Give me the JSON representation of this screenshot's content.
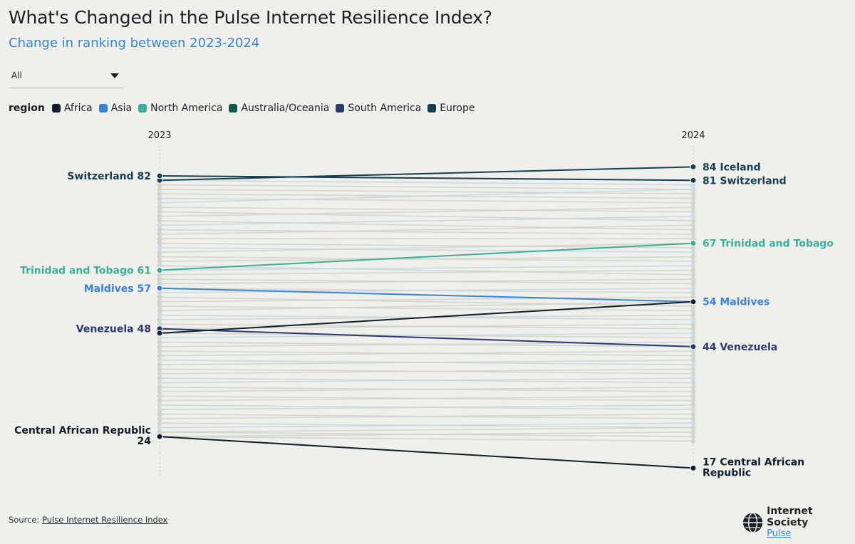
{
  "header": {
    "title": "What's Changed in the Pulse Internet Resilience Index?",
    "subtitle": "Change in ranking between 2023-2024"
  },
  "filter": {
    "selected": "All"
  },
  "legend": {
    "title": "region",
    "items": [
      {
        "label": "Africa",
        "color": "#0f1f2e"
      },
      {
        "label": "Asia",
        "color": "#3b82d6"
      },
      {
        "label": "North America",
        "color": "#3aae9a"
      },
      {
        "label": "Australia/Oceania",
        "color": "#0b5a4a"
      },
      {
        "label": "South America",
        "color": "#2a3a6e"
      },
      {
        "label": "Europe",
        "color": "#173e4e"
      }
    ]
  },
  "chart_data": {
    "type": "slope",
    "x": [
      "2023",
      "2024"
    ],
    "ylim": [
      15,
      85
    ],
    "highlighted": [
      {
        "country": "Iceland",
        "region": "Europe",
        "v2023": 81,
        "v2024": 84,
        "label2023": "",
        "label2024": "84 Iceland"
      },
      {
        "country": "Switzerland",
        "region": "Europe",
        "v2023": 82,
        "v2024": 81,
        "label2023": "Switzerland 82",
        "label2024": "81 Switzerland"
      },
      {
        "country": "Trinidad and Tobago",
        "region": "North America",
        "v2023": 61,
        "v2024": 67,
        "label2023": "Trinidad and Tobago 61",
        "label2024": "67 Trinidad and Tobago"
      },
      {
        "country": "Maldives",
        "region": "Asia",
        "v2023": 57,
        "v2024": 54,
        "label2023": "Maldives 57",
        "label2024": "54 Maldives"
      },
      {
        "country": "Venezuela",
        "region": "South America",
        "v2023": 48,
        "v2024": 44,
        "label2023": "Venezuela 48",
        "label2024": "44 Venezuela"
      },
      {
        "country": "Unlabeled Africa",
        "region": "Africa",
        "v2023": 47,
        "v2024": 54,
        "label2023": "",
        "label2024": ""
      },
      {
        "country": "Central African Republic",
        "region": "Africa",
        "v2023": 24,
        "v2024": 17,
        "label2023": "Central African Republic 24",
        "label2024": "17 Central African Republic"
      }
    ],
    "background_lines": [
      [
        81,
        80
      ],
      [
        80,
        79
      ],
      [
        79,
        78
      ],
      [
        78,
        77
      ],
      [
        77,
        76
      ],
      [
        76,
        79
      ],
      [
        75,
        74
      ],
      [
        74,
        72
      ],
      [
        73,
        75
      ],
      [
        72,
        70
      ],
      [
        71,
        73
      ],
      [
        70,
        69
      ],
      [
        69,
        71
      ],
      [
        68,
        68
      ],
      [
        67,
        66
      ],
      [
        66,
        65
      ],
      [
        65,
        67
      ],
      [
        64,
        63
      ],
      [
        63,
        64
      ],
      [
        62,
        60
      ],
      [
        61,
        62
      ],
      [
        60,
        61
      ],
      [
        59,
        58
      ],
      [
        58,
        59
      ],
      [
        57,
        56
      ],
      [
        56,
        57
      ],
      [
        55,
        53
      ],
      [
        54,
        55
      ],
      [
        53,
        52
      ],
      [
        52,
        54
      ],
      [
        51,
        50
      ],
      [
        50,
        51
      ],
      [
        49,
        48
      ],
      [
        48,
        49
      ],
      [
        47,
        46
      ],
      [
        46,
        47
      ],
      [
        45,
        44
      ],
      [
        44,
        45
      ],
      [
        43,
        42
      ],
      [
        42,
        43
      ],
      [
        41,
        40
      ],
      [
        40,
        41
      ],
      [
        39,
        38
      ],
      [
        38,
        39
      ],
      [
        37,
        36
      ],
      [
        36,
        37
      ],
      [
        35,
        34
      ],
      [
        34,
        35
      ],
      [
        33,
        32
      ],
      [
        32,
        33
      ],
      [
        31,
        30
      ],
      [
        30,
        31
      ],
      [
        29,
        28
      ],
      [
        28,
        29
      ],
      [
        27,
        26
      ],
      [
        26,
        27
      ],
      [
        25,
        26
      ],
      [
        25,
        24
      ],
      [
        24,
        25
      ],
      [
        24,
        23
      ]
    ]
  },
  "footer": {
    "source_label": "Source:",
    "source_link": "Pulse Internet Resilience Index",
    "brand_name": "Internet Society",
    "brand_sub": "Pulse"
  }
}
